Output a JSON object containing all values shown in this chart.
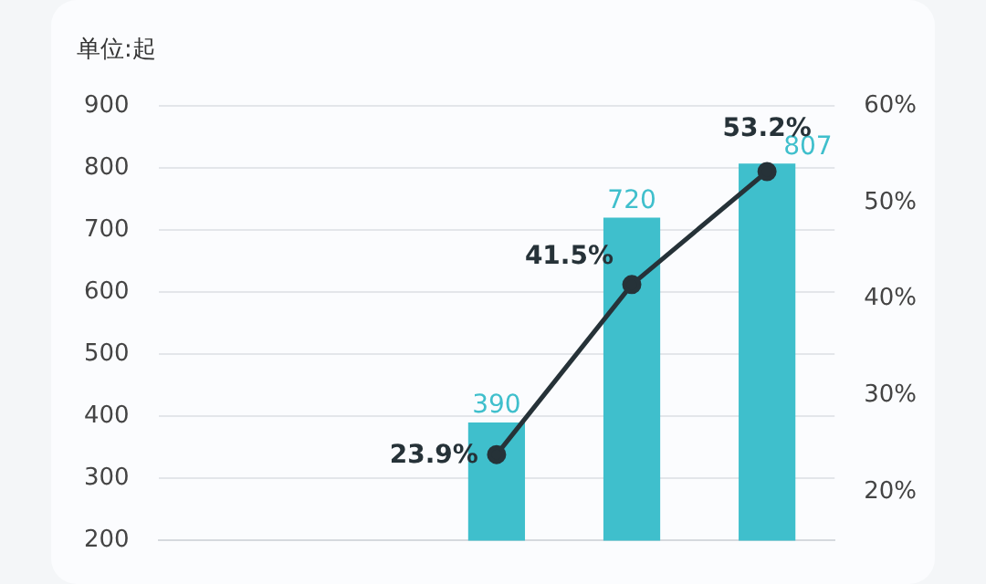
{
  "chart_data": {
    "type": "bar",
    "ylabel": "单位:起",
    "categories": [
      null,
      null,
      null,
      null,
      null
    ],
    "series": [
      {
        "color": "#3fbfcc",
        "values": [
          null,
          null,
          390,
          720,
          807
        ],
        "value_labels": [
          null,
          null,
          "390",
          "720",
          "807"
        ]
      },
      {
        "type": "line",
        "axis": "y2",
        "color": "#263238",
        "marker": "circle",
        "values": [
          null,
          null,
          23.9,
          41.5,
          53.2
        ],
        "value_labels": [
          null,
          null,
          "23.9%",
          "41.5%",
          "53.2%"
        ]
      }
    ],
    "ylim": [
      200,
      900
    ],
    "yticks": [
      200,
      300,
      400,
      500,
      600,
      700,
      800,
      900
    ],
    "y2lim": [
      15,
      60
    ],
    "y2ticks": [
      {
        "value": 20,
        "label": "20%"
      },
      {
        "value": 30,
        "label": "30%"
      },
      {
        "value": 40,
        "label": "40%"
      },
      {
        "value": 50,
        "label": "50%"
      },
      {
        "value": 60,
        "label": "60%"
      }
    ],
    "grid": "y",
    "legend": false
  }
}
